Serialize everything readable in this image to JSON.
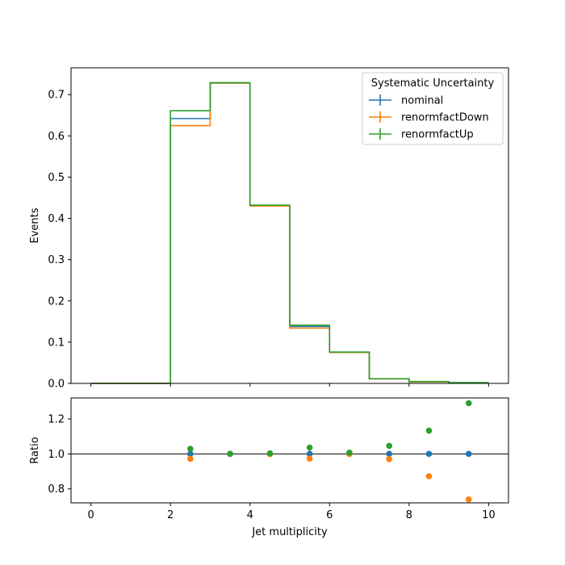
{
  "chart_data": [
    {
      "type": "line",
      "drawstyle": "step",
      "xlabel": "",
      "ylabel": "Events",
      "xlim": [
        -0.5,
        10.5
      ],
      "ylim": [
        0,
        0.765
      ],
      "xticks": [
        0,
        2,
        4,
        6,
        8,
        10
      ],
      "yticks": [
        0.0,
        0.1,
        0.2,
        0.3,
        0.4,
        0.5,
        0.6,
        0.7
      ],
      "ytick_labels": [
        "0.0",
        "0.1",
        "0.2",
        "0.3",
        "0.4",
        "0.5",
        "0.6",
        "0.7"
      ],
      "bin_edges": [
        0,
        1,
        2,
        3,
        4,
        5,
        6,
        7,
        8,
        9,
        10
      ],
      "legend": {
        "title": "Systematic Uncertainty",
        "placement": "top-right"
      },
      "series": [
        {
          "name": "nominal",
          "color": "#1f77b4",
          "values": [
            0,
            0,
            0.642,
            0.728,
            0.431,
            0.138,
            0.075,
            0.011,
            0.004,
            0.0015
          ]
        },
        {
          "name": "renormfactDown",
          "color": "#ff7f0e",
          "values": [
            0,
            0,
            0.625,
            0.728,
            0.43,
            0.134,
            0.075,
            0.011,
            0.0035,
            0.0011
          ]
        },
        {
          "name": "renormfactUp",
          "color": "#2ca02c",
          "values": [
            0,
            0,
            0.661,
            0.729,
            0.432,
            0.141,
            0.076,
            0.0115,
            0.0045,
            0.0019
          ]
        }
      ]
    },
    {
      "type": "scatter",
      "xlabel": "Jet multiplicity",
      "ylabel": "Ratio",
      "xlim": [
        -0.5,
        10.5
      ],
      "ylim": [
        0.72,
        1.32
      ],
      "xticks": [
        0,
        2,
        4,
        6,
        8,
        10
      ],
      "xtick_labels": [
        "0",
        "2",
        "4",
        "6",
        "8",
        "10"
      ],
      "yticks": [
        0.8,
        1.0,
        1.2
      ],
      "ytick_labels": [
        "0.8",
        "1.0",
        "1.2"
      ],
      "reference_line": 1.0,
      "x": [
        2.5,
        3.5,
        4.5,
        5.5,
        6.5,
        7.5,
        8.5,
        9.5
      ],
      "series": [
        {
          "name": "nominal",
          "color": "#1f77b4",
          "values": [
            1.0,
            1.0,
            1.0,
            1.0,
            1.0,
            1.0,
            1.0,
            1.0
          ]
        },
        {
          "name": "renormfactDown",
          "color": "#ff7f0e",
          "values": [
            0.972,
            1.0,
            0.999,
            0.973,
            1.0,
            0.97,
            0.872,
            0.74
          ]
        },
        {
          "name": "renormfactUp",
          "color": "#2ca02c",
          "values": [
            1.029,
            1.0,
            1.003,
            1.036,
            1.007,
            1.046,
            1.133,
            1.29
          ]
        }
      ]
    }
  ]
}
